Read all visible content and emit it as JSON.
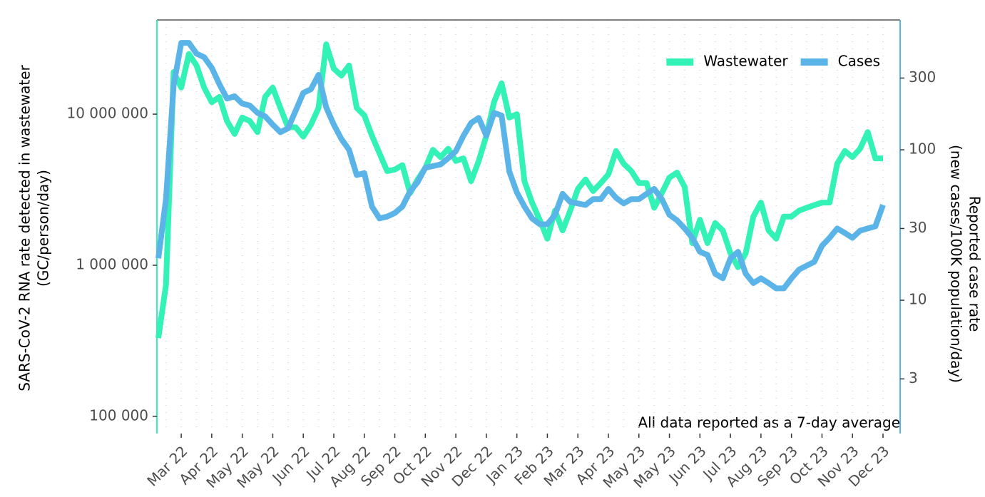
{
  "chart_data": {
    "type": "line",
    "y_label": [
      "SARS-CoV-2 RNA rate detected in wastewater",
      "(GC/person/day)"
    ],
    "y2_label": [
      "Reported case rate",
      "(new cases/100K population/day)"
    ],
    "annotation": "All data reported as a 7-day average",
    "log_scale": true,
    "grid": true,
    "legend": "upper right",
    "categories": [
      null,
      null,
      null,
      "Mar 22",
      null,
      null,
      null,
      "Apr 22",
      null,
      null,
      null,
      "May 22",
      null,
      null,
      null,
      "May 22",
      null,
      null,
      null,
      "Jun 22",
      null,
      null,
      null,
      "Jul 22",
      null,
      null,
      null,
      "Aug 22",
      null,
      null,
      null,
      "Sep 22",
      null,
      null,
      null,
      "Oct 22",
      null,
      null,
      null,
      "Nov 22",
      null,
      null,
      null,
      "Dec 22",
      null,
      null,
      null,
      "Jan 23",
      null,
      null,
      null,
      "Feb 23",
      null,
      null,
      null,
      "Mar 23",
      null,
      null,
      null,
      "Apr 23",
      null,
      null,
      null,
      "May 23",
      null,
      null,
      null,
      "May 23",
      null,
      null,
      null,
      "Jun 23",
      null,
      null,
      null,
      "Jul 23",
      null,
      null,
      null,
      "Aug 23",
      null,
      null,
      null,
      "Sep 23",
      null,
      null,
      null,
      "Oct 23",
      null,
      null,
      null,
      "Nov 23",
      null,
      null,
      null,
      "Dec 23"
    ],
    "series": [
      {
        "name": "Wastewater",
        "color": "#33f2b5",
        "values": [
          330000,
          740000,
          19000000,
          15000000,
          25000000,
          21000000,
          15000000,
          12000000,
          13000000,
          9000000,
          7400000,
          9500000,
          9000000,
          7600000,
          13000000,
          15000000,
          11000000,
          8200000,
          8200000,
          7100000,
          8500000,
          11000000,
          29000000,
          20000000,
          18000000,
          21000000,
          11000000,
          9800000,
          7200000,
          5500000,
          4200000,
          4300000,
          4600000,
          3000000,
          3700000,
          4400000,
          5800000,
          5200000,
          5900000,
          4900000,
          5100000,
          3600000,
          4900000,
          7200000,
          12000000,
          16000000,
          9500000,
          10000000,
          3600000,
          2600000,
          2000000,
          1500000,
          2300000,
          1700000,
          2300000,
          3200000,
          3700000,
          3100000,
          3500000,
          4000000,
          5700000,
          4700000,
          4200000,
          3500000,
          3500000,
          2400000,
          3000000,
          3800000,
          4100000,
          3300000,
          1400000,
          2000000,
          1400000,
          1900000,
          1700000,
          1200000,
          970000,
          1200000,
          2100000,
          2600000,
          1700000,
          1500000,
          2100000,
          2100000,
          2300000,
          2400000,
          2500000,
          2600000,
          2600000,
          4700000,
          5700000,
          5200000,
          5900000,
          7600000,
          5100000,
          5100000
        ]
      },
      {
        "name": "Cases",
        "color": "#5bb4e8",
        "axis": "y2",
        "values": [
          19,
          47,
          267,
          514,
          514,
          436,
          413,
          351,
          273,
          219,
          227,
          203,
          197,
          176,
          167,
          147,
          131,
          139,
          182,
          239,
          253,
          315,
          192,
          147,
          118,
          100,
          68,
          70,
          42,
          35,
          36,
          38,
          42,
          53,
          61,
          76,
          78,
          80,
          88,
          98,
          124,
          151,
          163,
          124,
          176,
          169,
          72,
          52,
          42,
          35,
          32,
          32,
          37,
          51,
          45,
          44,
          43,
          47,
          47,
          55,
          48,
          44,
          47,
          47,
          51,
          55,
          47,
          37,
          34,
          30,
          26,
          21,
          20,
          15,
          14,
          19,
          21,
          15,
          13,
          14,
          13,
          12,
          12,
          14,
          16,
          17,
          18,
          23,
          26,
          30,
          28,
          26,
          29,
          30,
          31,
          43
        ]
      }
    ],
    "ylim": [
      77000,
      42000000
    ],
    "yticks": [
      {
        "value": 100000,
        "label": "100 000"
      },
      {
        "value": 1000000,
        "label": "1 000 000"
      },
      {
        "value": 10000000,
        "label": "10 000 000"
      }
    ],
    "y2lim": [
      1.3,
      730
    ],
    "y2ticks": [
      3,
      10,
      30,
      100,
      300
    ]
  }
}
